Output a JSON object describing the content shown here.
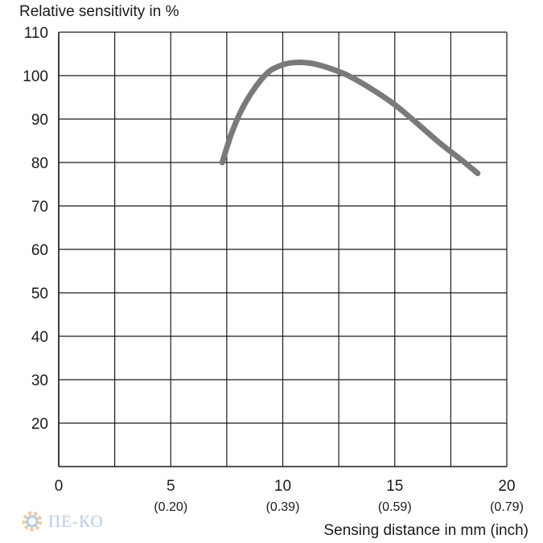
{
  "chart_data": {
    "type": "line",
    "ylabel": "Relative sensitivity in %",
    "xlabel": "Sensing distance in mm (inch)",
    "xlim": [
      0,
      20
    ],
    "ylim": [
      10,
      110
    ],
    "x_ticks": [
      {
        "value": 0,
        "label": "0",
        "sub": ""
      },
      {
        "value": 5,
        "label": "5",
        "sub": "(0.20)"
      },
      {
        "value": 10,
        "label": "10",
        "sub": "(0.39)"
      },
      {
        "value": 15,
        "label": "15",
        "sub": "(0.59)"
      },
      {
        "value": 20,
        "label": "20",
        "sub": "(0.79)"
      }
    ],
    "y_ticks": [
      20,
      30,
      40,
      50,
      60,
      70,
      80,
      90,
      100,
      110
    ],
    "grid": true,
    "x_grid_step": 2.5,
    "series": [
      {
        "color": "#7a7a7a",
        "x": [
          7.3,
          7.7,
          8.2,
          8.8,
          9.4,
          10.0,
          10.5,
          11.0,
          11.5,
          12.2,
          13.0,
          14.0,
          15.0,
          16.0,
          17.0,
          18.0,
          18.7
        ],
        "y": [
          80.0,
          86.5,
          92.5,
          97.5,
          101.0,
          102.5,
          103.0,
          103.0,
          102.6,
          101.5,
          99.8,
          96.8,
          93.3,
          89.0,
          84.5,
          80.5,
          77.5
        ]
      }
    ]
  },
  "watermark": {
    "text": "ПЕ-КО"
  }
}
